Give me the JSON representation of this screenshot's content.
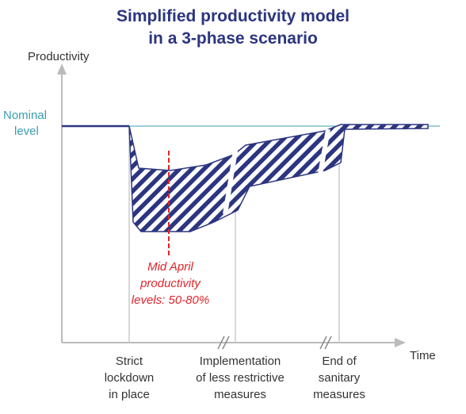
{
  "title": [
    "Simplified productivity model",
    "in a 3-phase scenario"
  ],
  "y_axis_label": "Productivity",
  "x_axis_label": "Time",
  "nominal_label": [
    "Nominal",
    "level"
  ],
  "annotation": [
    "Mid April",
    "productivity",
    "levels: 50-80%"
  ],
  "phases": [
    {
      "label": [
        "Strict",
        "lockdown",
        "in place"
      ]
    },
    {
      "label": [
        "Implementation",
        "of less restrictive",
        "measures"
      ]
    },
    {
      "label": [
        "End of",
        "sanitary",
        "measures"
      ]
    }
  ]
}
